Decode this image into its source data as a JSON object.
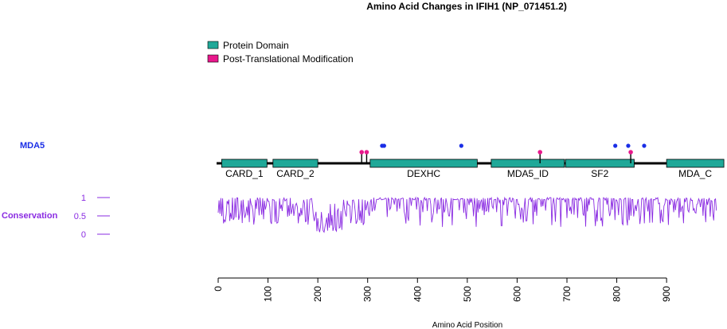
{
  "chart_data": {
    "type": "protein-lollipop",
    "title": "Amino Acid Changes in IFIH1 (NP_071451.2)",
    "xlabel": "Amino Acid Position",
    "xlim": [
      0,
      1000
    ],
    "x_ticks": [
      0,
      100,
      200,
      300,
      400,
      500,
      600,
      700,
      800,
      900
    ],
    "track_label": "MDA5",
    "legend": [
      {
        "label": "Protein Domain",
        "color": "#1fa898"
      },
      {
        "label": "Post-Translational Modification",
        "color": "#e8188c"
      }
    ],
    "domains": [
      {
        "name": "CARD_1",
        "start": 7,
        "end": 98
      },
      {
        "name": "CARD_2",
        "start": 110,
        "end": 200
      },
      {
        "name": "DEXHC",
        "start": 305,
        "end": 520
      },
      {
        "name": "MDA5_ID",
        "start": 548,
        "end": 695
      },
      {
        "name": "SF2",
        "start": 697,
        "end": 835
      },
      {
        "name": "MDA_C",
        "start": 900,
        "end": 1015
      }
    ],
    "ptm_sites": [
      {
        "position": 288,
        "color": "#e8188c"
      },
      {
        "position": 298,
        "color": "#e8188c"
      },
      {
        "position": 646,
        "color": "#e8188c"
      },
      {
        "position": 828,
        "color": "#e8188c"
      }
    ],
    "variants": [
      {
        "position": 329,
        "color": "#1a2ee6"
      },
      {
        "position": 333,
        "color": "#1a2ee6"
      },
      {
        "position": 488,
        "color": "#1a2ee6"
      },
      {
        "position": 797,
        "color": "#1a2ee6"
      },
      {
        "position": 823,
        "color": "#1a2ee6"
      },
      {
        "position": 855,
        "color": "#1a2ee6"
      }
    ],
    "conservation": {
      "label": "Conservation",
      "ticks": [
        "1",
        "0.5",
        "0"
      ],
      "tick_values": [
        1,
        0.5,
        0
      ],
      "ylim": [
        0,
        1
      ],
      "color": "#8a2be2",
      "x_range": [
        0,
        1000
      ]
    },
    "colors": {
      "domain": "#1fa898",
      "backbone": "#000000",
      "track_label": "#1a2ee6",
      "conservation": "#8a2be2"
    }
  }
}
